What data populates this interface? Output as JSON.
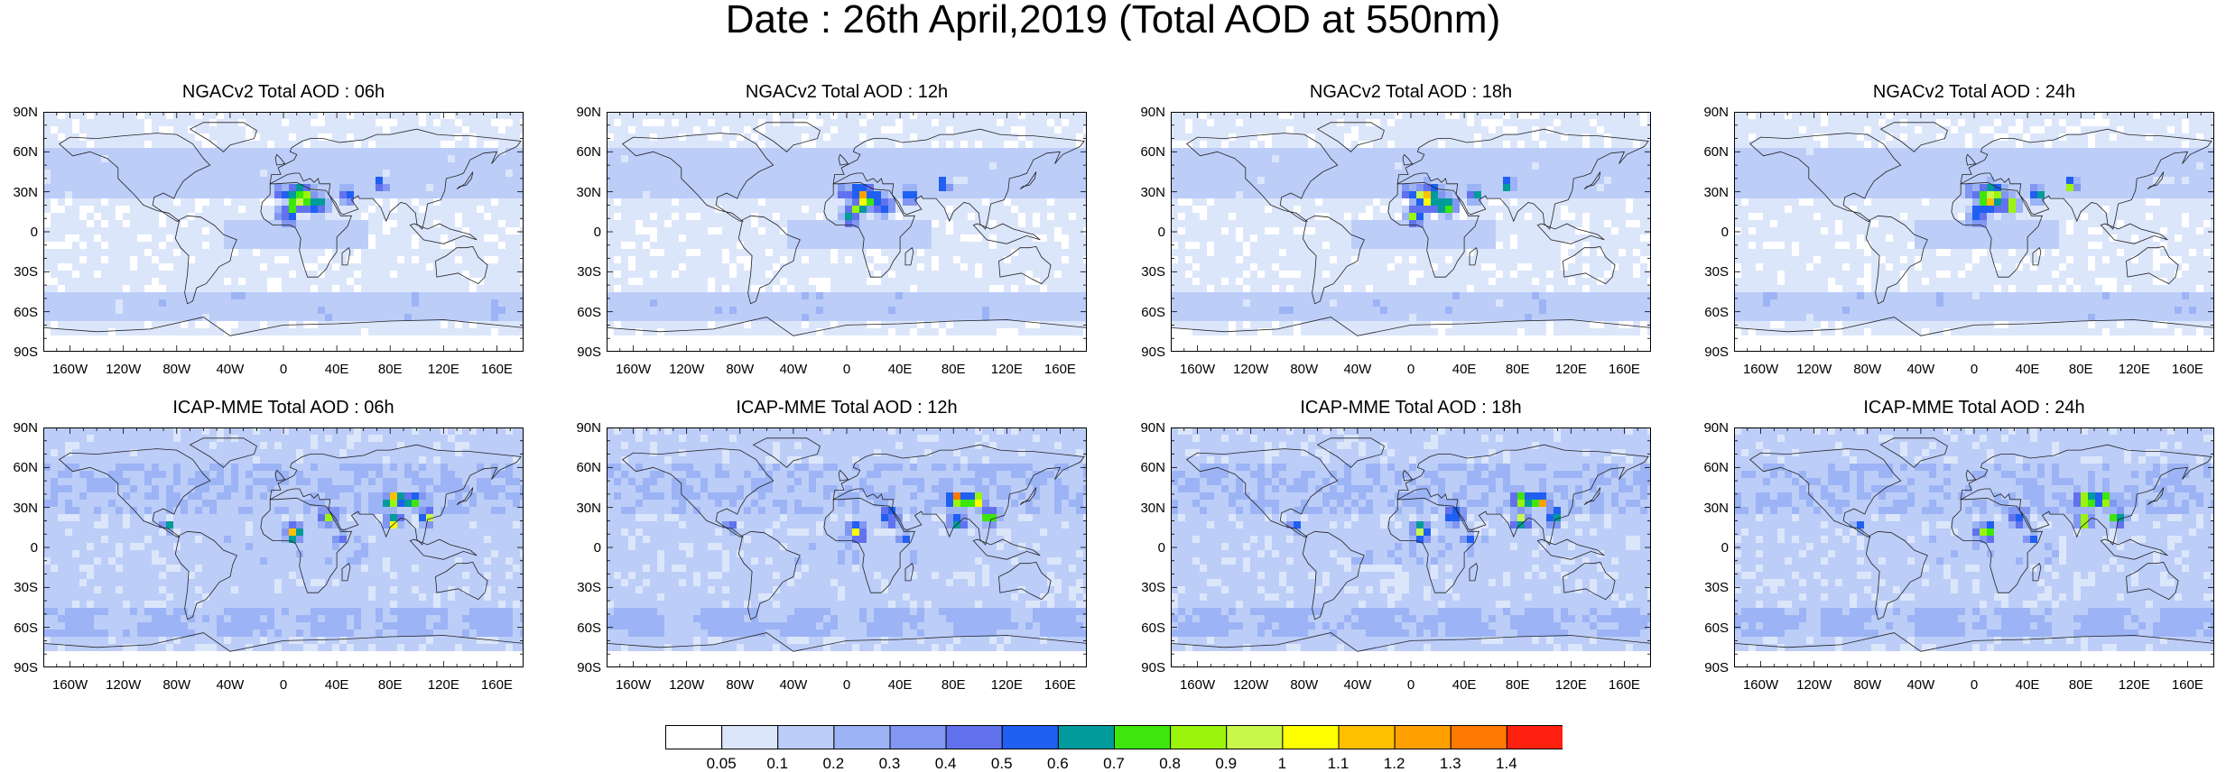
{
  "title": "Date : 26th April,2019 (Total AOD at 550nm)",
  "panels": [
    {
      "title": "NGACv2 Total AOD : 06h",
      "model": "NGACv2",
      "hour": "06h"
    },
    {
      "title": "NGACv2 Total AOD : 12h",
      "model": "NGACv2",
      "hour": "12h"
    },
    {
      "title": "NGACv2 Total AOD : 18h",
      "model": "NGACv2",
      "hour": "18h"
    },
    {
      "title": "NGACv2 Total AOD : 24h",
      "model": "NGACv2",
      "hour": "24h"
    },
    {
      "title": "ICAP-MME Total AOD : 06h",
      "model": "ICAP-MME",
      "hour": "06h"
    },
    {
      "title": "ICAP-MME Total AOD : 12h",
      "model": "ICAP-MME",
      "hour": "12h"
    },
    {
      "title": "ICAP-MME Total AOD : 18h",
      "model": "ICAP-MME",
      "hour": "18h"
    },
    {
      "title": "ICAP-MME Total AOD : 24h",
      "model": "ICAP-MME",
      "hour": "24h"
    }
  ],
  "lat_labels": [
    "90N",
    "60N",
    "30N",
    "0",
    "30S",
    "60S",
    "90S"
  ],
  "lon_labels": [
    "160W",
    "120W",
    "80W",
    "40W",
    "0",
    "40E",
    "80E",
    "120E",
    "160E"
  ],
  "colorbar": {
    "labels": [
      "0.05",
      "0.1",
      "0.2",
      "0.3",
      "0.4",
      "0.5",
      "0.6",
      "0.7",
      "0.8",
      "0.9",
      "1",
      "1.1",
      "1.2",
      "1.3",
      "1.4"
    ],
    "colors": [
      "#ffffff",
      "#dce6fb",
      "#bccdf8",
      "#9cb4f5",
      "#8197f1",
      "#6272ee",
      "#1f5ff2",
      "#009b9a",
      "#3de60c",
      "#9bf40c",
      "#c8f84c",
      "#ffff00",
      "#ffc000",
      "#ffa000",
      "#ff7800",
      "#ff2010"
    ]
  }
}
